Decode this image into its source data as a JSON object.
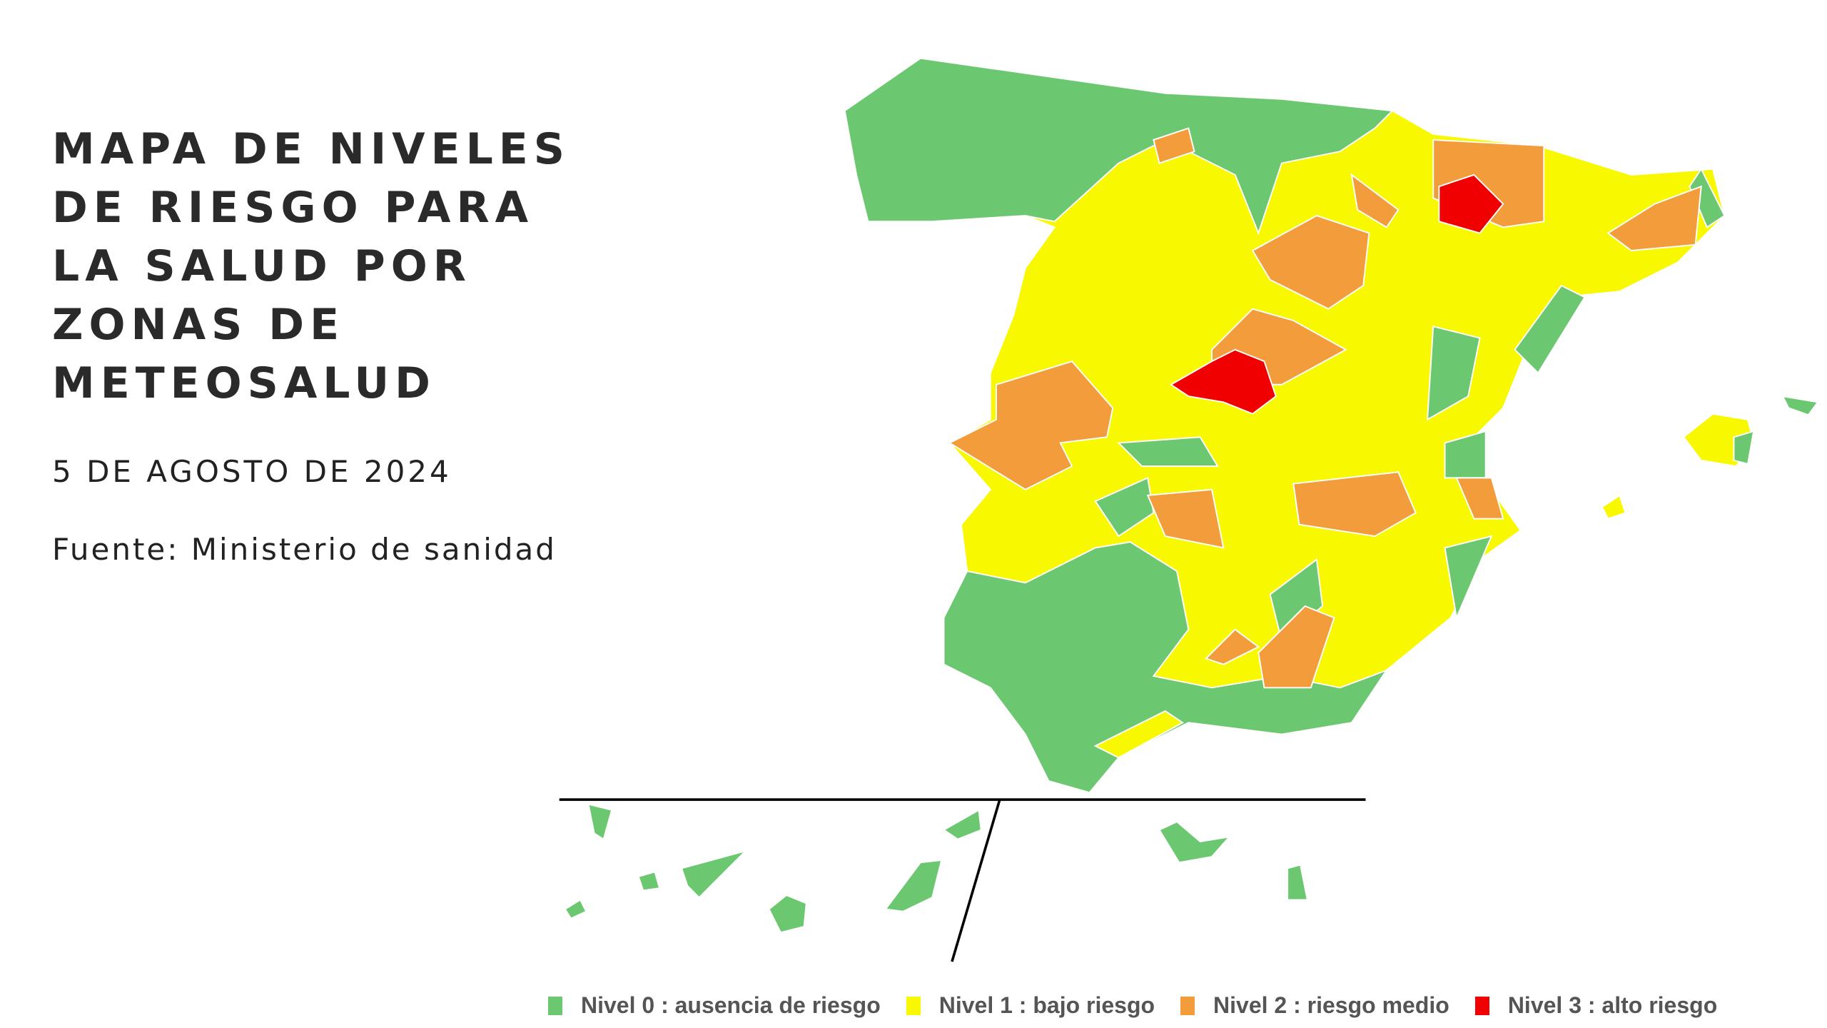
{
  "header": {
    "title_lines": [
      "MAPA DE NIVELES",
      "DE RIESGO PARA",
      "LA SALUD POR",
      "ZONAS DE",
      "METEOSALUD"
    ],
    "date": "5 DE AGOSTO DE 2024",
    "source": "Fuente: Ministerio de sanidad"
  },
  "legend": [
    {
      "label": "Nivel 0 : ausencia de riesgo",
      "color": "#6cc870"
    },
    {
      "label": "Nivel 1 : bajo riesgo",
      "color": "#f8f800"
    },
    {
      "label": "Nivel 2 : riesgo medio",
      "color": "#f39c3c"
    },
    {
      "label": "Nivel 3 : alto riesgo",
      "color": "#f00000"
    }
  ]
}
